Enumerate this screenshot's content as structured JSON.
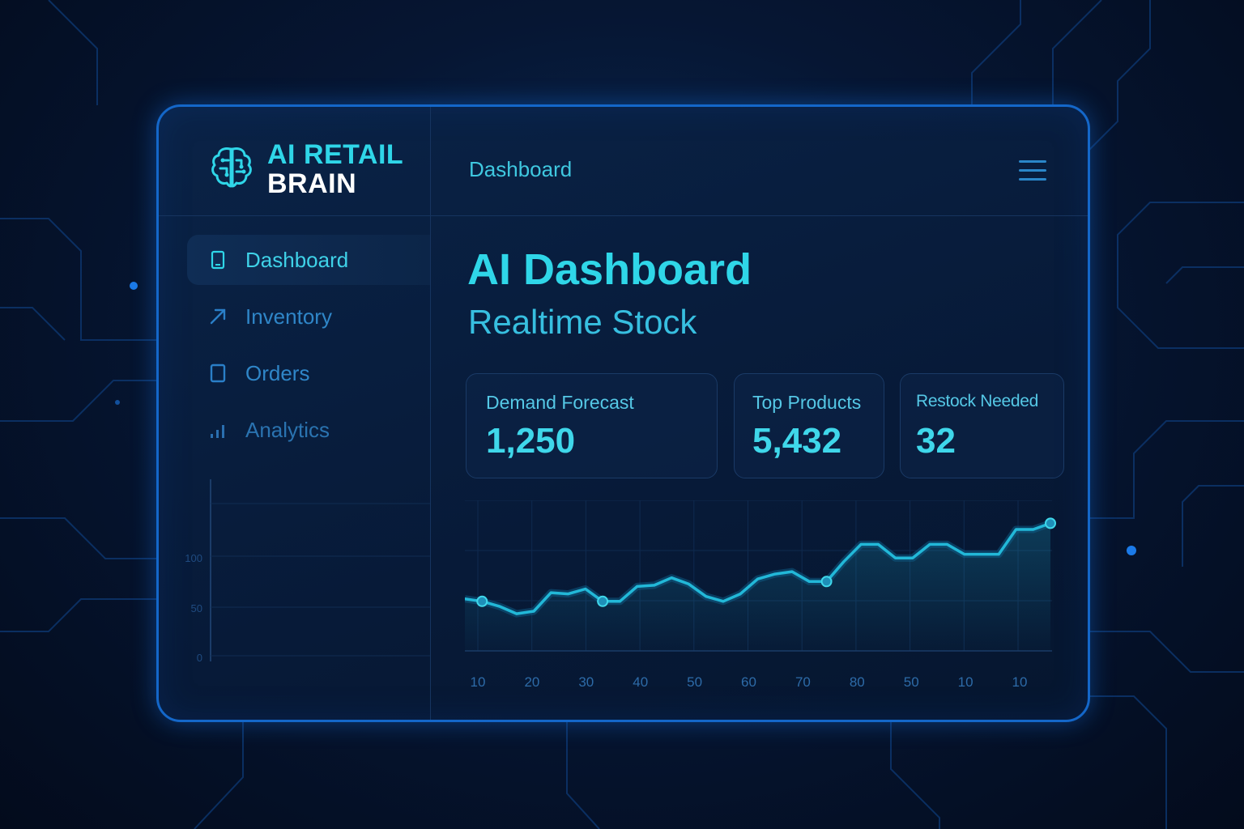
{
  "app": {
    "logo_line1": "AI RETAIL",
    "logo_line2": "BRAIN",
    "logo_icon": "brain-circuit-icon"
  },
  "header": {
    "title": "Dashboard",
    "menu_icon": "hamburger-menu-icon"
  },
  "sidebar": {
    "items": [
      {
        "label": "Dashboard",
        "icon": "tablet-icon",
        "active": true
      },
      {
        "label": "Inventory",
        "icon": "arrow-up-right-icon",
        "active": false
      },
      {
        "label": "Orders",
        "icon": "document-icon",
        "active": false
      },
      {
        "label": "Analytics",
        "icon": "bar-chart-icon",
        "active": false
      }
    ],
    "mini_chart": {
      "y_ticks": [
        "100",
        "50",
        "0"
      ]
    }
  },
  "main": {
    "title": "AI Dashboard",
    "subtitle": "Realtime Stock",
    "cards": [
      {
        "label": "Demand Forecast",
        "value": "1,250"
      },
      {
        "label": "Top Products",
        "value": "5,432"
      },
      {
        "label": "Restock Needed",
        "value": "32"
      }
    ]
  },
  "colors": {
    "accent": "#2fd6e8",
    "line": "#22b8d8",
    "border": "#1467c9",
    "background": "#061633"
  },
  "chart_data": {
    "type": "line",
    "x_tick_labels": [
      "10",
      "20",
      "30",
      "40",
      "50",
      "60",
      "70",
      "80",
      "50",
      "10",
      "10"
    ],
    "values": [
      42,
      40,
      36,
      30,
      32,
      47,
      46,
      50,
      40,
      40,
      52,
      53,
      59,
      54,
      44,
      40,
      46,
      58,
      62,
      64,
      56,
      56,
      72,
      86,
      86,
      75,
      75,
      86,
      86,
      78,
      78,
      78,
      98,
      98,
      103
    ],
    "markers": [
      1,
      8,
      21,
      34
    ],
    "ylim": [
      0,
      115
    ],
    "grid": true
  }
}
